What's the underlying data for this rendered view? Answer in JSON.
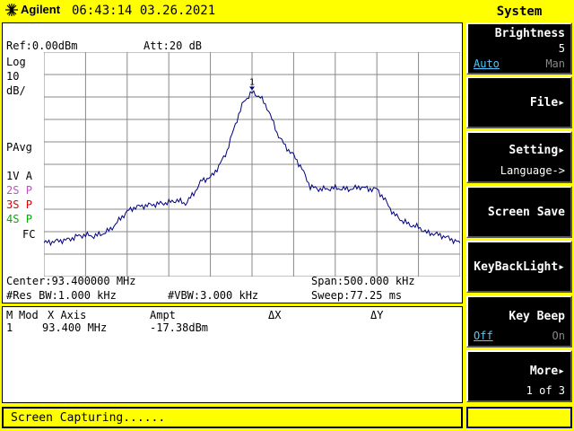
{
  "topbar": {
    "brand": "Agilent",
    "datetime": "06:43:14  03.26.2021",
    "menu_title": "System"
  },
  "screen": {
    "ref": "Ref:0.00dBm",
    "att": "Att:20 dB",
    "scale_lines": [
      "Log",
      "10",
      "dB/"
    ],
    "pavg": "PAvg",
    "traces": [
      {
        "id": "1",
        "label": "V",
        "state": "A",
        "color": "#000000"
      },
      {
        "id": "2",
        "label": "S",
        "state": "P",
        "color": "#c050c0"
      },
      {
        "id": "3",
        "label": "S",
        "state": "P",
        "color": "#e00000"
      },
      {
        "id": "4",
        "label": "S",
        "state": "P",
        "color": "#00b000"
      }
    ],
    "fc": "FC",
    "marker_label": "1",
    "center": "Center:93.400000 MHz",
    "span": "Span:500.000 kHz",
    "res_bw": "#Res BW:1.000 kHz",
    "vbw": "#VBW:3.000 kHz",
    "sweep": "Sweep:77.25 ms"
  },
  "chart_data": {
    "type": "line",
    "x_label_center": "Center:93.400000 MHz",
    "span_khz": 500,
    "x_khz": [
      -250,
      -240,
      -230,
      -220,
      -210,
      -200,
      -190,
      -180,
      -170,
      -160,
      -150,
      -140,
      -130,
      -120,
      -110,
      -100,
      -90,
      -80,
      -70,
      -60,
      -50,
      -40,
      -30,
      -20,
      -10,
      0,
      10,
      20,
      30,
      40,
      50,
      60,
      70,
      80,
      90,
      100,
      110,
      120,
      130,
      140,
      150,
      160,
      170,
      180,
      190,
      200,
      210,
      220,
      230,
      240,
      250
    ],
    "y_dbm": [
      -85,
      -84.5,
      -84,
      -83.5,
      -82,
      -81.5,
      -82,
      -81,
      -79,
      -75,
      -71,
      -69,
      -68.5,
      -68,
      -67.5,
      -67,
      -66,
      -67.5,
      -63,
      -57,
      -56,
      -51,
      -44,
      -32,
      -22,
      -18,
      -20,
      -26,
      -36,
      -42,
      -46,
      -52,
      -60,
      -61,
      -61,
      -60.5,
      -61,
      -61,
      -60,
      -61,
      -61,
      -66,
      -72,
      -75,
      -77,
      -78,
      -80.5,
      -81,
      -82,
      -83.5,
      -85
    ],
    "ylim": [
      -100,
      0
    ],
    "y_scale": "Log 10 dB/div",
    "grid": true,
    "marker": {
      "label": "1",
      "x_khz": 0,
      "y_dbm": -17.38
    }
  },
  "marker_table": {
    "headers": [
      "M",
      "Mod",
      "X Axis",
      "Ampt",
      "ΔX",
      "ΔY"
    ],
    "rows": [
      [
        "1",
        "",
        "93.400 MHz",
        "-17.38dBm",
        "",
        ""
      ]
    ]
  },
  "softkeys": [
    {
      "label": "Brightness",
      "value": "5",
      "opt_a": "Auto",
      "opt_b": "Man"
    },
    {
      "label": "File▸"
    },
    {
      "label": "Setting▸",
      "sub": "Language->"
    },
    {
      "label": "Screen Save"
    },
    {
      "label": "KeyBackLight▸"
    },
    {
      "label": "Key Beep",
      "opt_a": "Off",
      "opt_b": "On"
    },
    {
      "label": "More▸",
      "sub": "1 of 3"
    }
  ],
  "status": {
    "text": "Screen Capturing......"
  }
}
